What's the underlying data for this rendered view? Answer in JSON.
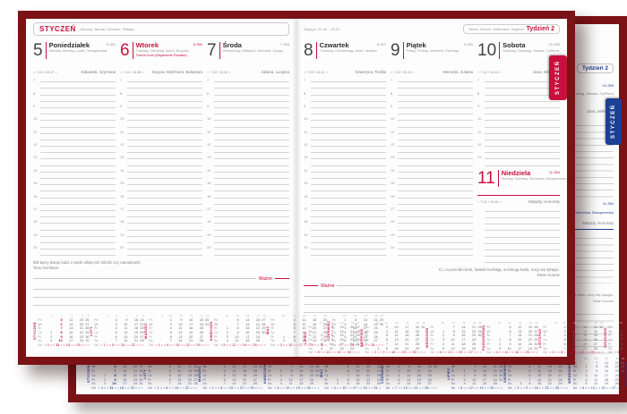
{
  "colors": {
    "cover": "#7a1216",
    "accent_red": "#c90f3d",
    "accent_blue": "#1d3f94"
  },
  "dow_labels": [
    "Pn",
    "Wt",
    "Śr",
    "Cz",
    "Pt",
    "So",
    "Nd"
  ],
  "hour_grids": {
    "full": {
      "start": 7,
      "end": 20
    },
    "sat": {
      "start": 7,
      "end": 13
    },
    "plain": {
      "lines": 9
    }
  },
  "months_h1": [
    {
      "name": "STYCZEŃ",
      "start": 3,
      "days": 31,
      "weeks": [
        1,
        2,
        3,
        4,
        5
      ],
      "hl": 1
    },
    {
      "name": "LUTY",
      "start": 6,
      "days": 28,
      "weeks": [
        5,
        6,
        7,
        8,
        9
      ]
    },
    {
      "name": "MARZEC",
      "start": 6,
      "days": 31,
      "weeks": [
        9,
        10,
        11,
        12,
        13,
        14
      ]
    },
    {
      "name": "KWIECIEŃ",
      "start": 2,
      "days": 30,
      "weeks": [
        14,
        15,
        16,
        17,
        18
      ]
    },
    {
      "name": "MAJ",
      "start": 4,
      "days": 31,
      "weeks": [
        18,
        19,
        20,
        21,
        22
      ]
    },
    {
      "name": "CZERWIEC",
      "start": 0,
      "days": 30,
      "weeks": [
        23,
        24,
        25,
        26,
        27
      ]
    }
  ],
  "months_h2": [
    {
      "name": "LIPIEC",
      "start": 2,
      "days": 31,
      "weeks": [
        27,
        28,
        29,
        30,
        31
      ]
    },
    {
      "name": "SIERPIEŃ",
      "start": 5,
      "days": 31,
      "weeks": [
        31,
        32,
        33,
        34,
        35,
        36
      ]
    },
    {
      "name": "WRZESIEŃ",
      "start": 1,
      "days": 30,
      "weeks": [
        36,
        37,
        38,
        39,
        40
      ]
    },
    {
      "name": "PAŹDZIERNIK",
      "start": 3,
      "days": 31,
      "weeks": [
        40,
        41,
        42,
        43,
        44
      ]
    },
    {
      "name": "LISTOPAD",
      "start": 6,
      "days": 30,
      "weeks": [
        44,
        45,
        46,
        47,
        48,
        49
      ]
    },
    {
      "name": "GRUDZIEŃ",
      "start": 1,
      "days": 31,
      "weeks": [
        49,
        50,
        51,
        52,
        53
      ]
    }
  ],
  "front": {
    "tab_label": "STYCZEŃ",
    "left_page": {
      "month": "STYCZEŃ",
      "month_subtitle": "January, Januar, Gennaio, Январь",
      "days": [
        {
          "number": "5",
          "code": "5-360",
          "name": "Poniedziałek",
          "subtitle": "Monday, Montag, Lundi, Понедельник",
          "sun": "7.44 / 15.37",
          "names": "Edwarda, Szymona"
        },
        {
          "number": "6",
          "code": "6-359",
          "name": "Wtorek",
          "subtitle": "Tuesday, Dienstag, Mardi, Вторник",
          "holiday": "Trzech Króli (Objawienie Pańskie)",
          "sun": "7.44 / 15.38",
          "names": "Kacpra, Melchiora, Baltazara"
        },
        {
          "number": "7",
          "code": "7-358",
          "name": "Środa",
          "subtitle": "Wednesday, Mittwoch, Mercredi, Среда",
          "sun": "7.43 / 15.40",
          "names": "Juliana, Lucjana"
        }
      ],
      "quote": "Ból łączy dwoje ludzi o wiele silniej niż miłość czy namiętność.",
      "quote_author": "Tess Gerritsen",
      "important_label": "Ważne"
    },
    "right_page": {
      "moon_info": "Księżyc: 22.46 – 20.01",
      "week_subtitle": "Week, Woche, Settimana, Неделя",
      "week_label": "Tydzień 2",
      "days": [
        {
          "number": "8",
          "code": "8-357",
          "name": "Czwartek",
          "subtitle": "Thursday, Donnerstag, Jeudi, Четверг",
          "sun": "7.43 / 15.41",
          "names": "Seweryna, Teofila"
        },
        {
          "number": "9",
          "code": "9-356",
          "name": "Piątek",
          "subtitle": "Friday, Freitag, Vendredi, Пятница",
          "sun": "7.42 / 15.43",
          "names": "Weroniki, Juliana"
        },
        {
          "number": "10",
          "code": "10-355",
          "name": "Sobota",
          "subtitle": "Saturday, Samstag, Sabato, Суббота",
          "sun": "7.42 / 15.44",
          "names": "Jana, Wilhelma"
        }
      ],
      "sunday": {
        "number": "11",
        "code": "11-354",
        "name": "Niedziela",
        "subtitle": "Sunday, Sonntag, Domenica, Воскресенье",
        "sun": "7.41 / 15.46",
        "names": "Matyldy, Honoraty"
      },
      "quote": "Ci, co poznali mrok, światło kochają, oczekują świtu, nocy się lękając.",
      "quote_author": "Dean Koontz",
      "important_label": "Ważne"
    }
  },
  "back": {
    "tab_label": "STYCZEŃ"
  }
}
